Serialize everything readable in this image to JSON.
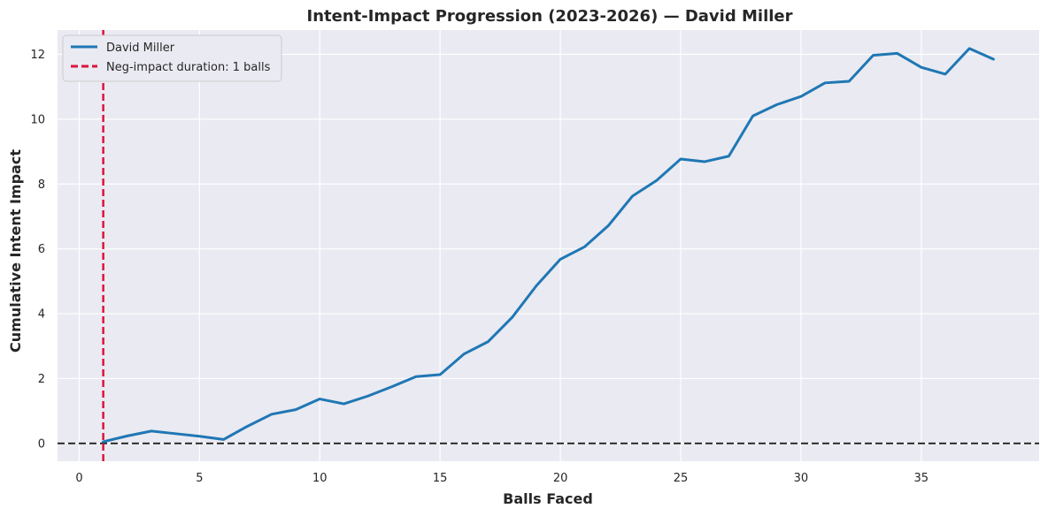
{
  "chart_data": {
    "type": "line",
    "title": "Intent-Impact Progression (2023-2026) — David Miller",
    "xlabel": "Balls Faced",
    "ylabel": "Cumulative Intent Impact",
    "xlim": [
      -0.9,
      39.9
    ],
    "ylim": [
      -0.55,
      12.75
    ],
    "xticks": [
      0,
      5,
      10,
      15,
      20,
      25,
      30,
      35
    ],
    "yticks": [
      0,
      2,
      4,
      6,
      8,
      10,
      12
    ],
    "grid": true,
    "legend_position": "top-left",
    "series": [
      {
        "name": "David Miller",
        "color": "#1f77b4",
        "x": [
          1,
          2,
          3,
          4,
          5,
          6,
          7,
          8,
          9,
          10,
          11,
          12,
          13,
          14,
          15,
          16,
          17,
          18,
          19,
          20,
          21,
          22,
          23,
          24,
          25,
          26,
          27,
          28,
          29,
          30,
          31,
          32,
          33,
          34,
          35,
          36,
          37,
          38
        ],
        "y": [
          0.05,
          0.23,
          0.38,
          0.3,
          0.22,
          0.12,
          0.53,
          0.9,
          1.04,
          1.37,
          1.22,
          1.46,
          1.75,
          2.06,
          2.12,
          2.76,
          3.14,
          3.89,
          4.86,
          5.68,
          6.06,
          6.72,
          7.63,
          8.11,
          8.77,
          8.69,
          8.86,
          10.1,
          10.45,
          10.7,
          11.12,
          11.17,
          11.97,
          12.03,
          11.6,
          11.39,
          12.18,
          11.85
        ]
      }
    ],
    "reference_lines": [
      {
        "orientation": "horizontal",
        "value": 0,
        "color": "#222222",
        "style": "dashed"
      },
      {
        "orientation": "vertical",
        "value": 1,
        "color": "#dc143c",
        "style": "dashed",
        "name": "Neg-impact duration: 1 balls"
      }
    ]
  }
}
